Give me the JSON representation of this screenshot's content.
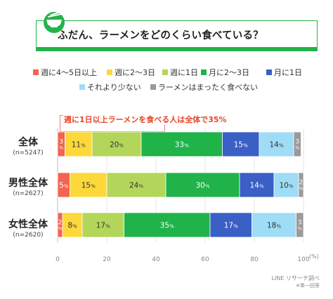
{
  "title": "ふだん、ラーメンをどのくらい食べている？",
  "annotation": "週に1日以上ラーメンを食べる人は全体で35%",
  "source": "LINE リサーチ調べ",
  "note": "※単一回答",
  "axis_unit": "(%)",
  "icon": "ramen-bowl-icon",
  "colors": {
    "accent": "#22b34a",
    "annotation": "#e8442a"
  },
  "chart_data": {
    "type": "bar",
    "stacked": true,
    "orientation": "horizontal",
    "xlim": [
      0,
      100
    ],
    "xticks": [
      0,
      20,
      40,
      60,
      80,
      100
    ],
    "categories": [
      {
        "label": "全体",
        "n": "(n=5247)"
      },
      {
        "label": "男性全体",
        "n": "(n=2627)"
      },
      {
        "label": "女性全体",
        "n": "(n=2620)"
      }
    ],
    "series": [
      {
        "name": "週に4～5日以上",
        "color": "#f2644f",
        "values": [
          3,
          5,
          2
        ],
        "labels": [
          "3%",
          "5%",
          "2%"
        ]
      },
      {
        "name": "週に2～3日",
        "color": "#fcd83a",
        "values": [
          11,
          15,
          8
        ],
        "labels": [
          "11%",
          "15%",
          "8%"
        ]
      },
      {
        "name": "週に1日",
        "color": "#b3d65a",
        "values": [
          20,
          24,
          17
        ],
        "labels": [
          "20%",
          "24%",
          "17%"
        ]
      },
      {
        "name": "月に2～3日",
        "color": "#1fb34a",
        "values": [
          33,
          30,
          35
        ],
        "labels": [
          "33%",
          "30%",
          "35%"
        ]
      },
      {
        "name": "月に1日",
        "color": "#3a5fc5",
        "values": [
          15,
          14,
          17
        ],
        "labels": [
          "15%",
          "14%",
          "17%"
        ]
      },
      {
        "name": "それより少ない",
        "color": "#9fdcf5",
        "values": [
          14,
          10,
          18
        ],
        "labels": [
          "14%",
          "10%",
          "18%"
        ]
      },
      {
        "name": "ラーメンはまったく食べない",
        "color": "#9a9a9a",
        "values": [
          3,
          2,
          3
        ],
        "labels": [
          "3%",
          "2%",
          "3%"
        ]
      }
    ]
  }
}
